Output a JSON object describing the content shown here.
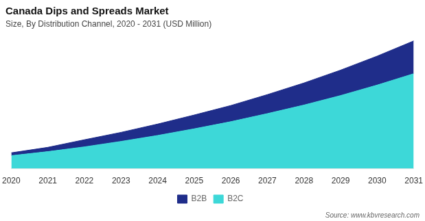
{
  "chart_data": {
    "type": "area",
    "stacked": true,
    "title": "Canada Dips and Spreads Market",
    "subtitle": "Size, By Distribution Channel, 2020 - 2031 (USD Million)",
    "source": "Source: www.kbvresearch.com",
    "x": [
      2020,
      2021,
      2022,
      2023,
      2024,
      2025,
      2026,
      2027,
      2028,
      2029,
      2030,
      2031
    ],
    "series": [
      {
        "name": "B2C",
        "color": "#3dd8d8",
        "values": [
          55,
          72,
          92,
          115,
          140,
          168,
          198,
          232,
          268,
          308,
          352,
          400
        ]
      },
      {
        "name": "B2B",
        "color": "#1f2d8a",
        "values": [
          12,
          18,
          30,
          38,
          48,
          58,
          68,
          80,
          93,
          107,
          122,
          138
        ]
      }
    ],
    "xlim": [
      2020,
      2031
    ],
    "xticks": [
      2020,
      2021,
      2022,
      2023,
      2024,
      2025,
      2026,
      2027,
      2028,
      2029,
      2030,
      2031
    ],
    "ylim": [
      0,
      564.9
    ],
    "tick_labels": "x",
    "grid": false,
    "legend": "bottom"
  }
}
